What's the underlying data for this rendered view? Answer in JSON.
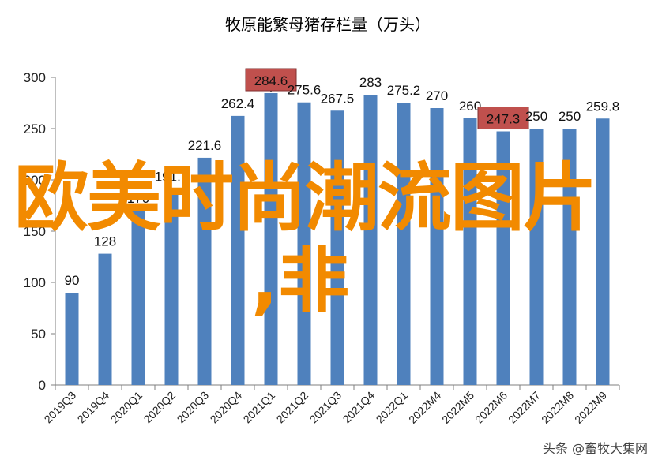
{
  "chart_data": {
    "type": "bar",
    "title": "牧原能繁母猪存栏量（万头）",
    "categories": [
      "2019Q3",
      "2019Q4",
      "2020Q1",
      "2020Q2",
      "2020Q3",
      "2020Q4",
      "2021Q1",
      "2021Q2",
      "2021Q3",
      "2021Q4",
      "2022Q1",
      "2022M4",
      "2022M5",
      "2022M6",
      "2022M7",
      "2022M8",
      "2022M9"
    ],
    "values": [
      90,
      128,
      170,
      191.1,
      221.6,
      262.4,
      284.6,
      275.6,
      267.5,
      283,
      275.2,
      270,
      260,
      247.3,
      250,
      250,
      259.8
    ],
    "data_labels": [
      "90",
      "128",
      "170",
      "191.1",
      "221.6",
      "262.4",
      "284.6",
      "275.6",
      "267.5",
      "283",
      "275.2",
      "270",
      "260",
      "247.3",
      "250",
      "250",
      "259.8"
    ],
    "highlighted": [
      "2021Q1",
      "2022M6"
    ],
    "ylim": [
      0,
      300
    ],
    "yticks": [
      0,
      50,
      100,
      150,
      200,
      250,
      300
    ],
    "ytick_labels": [
      "0",
      "50",
      "100",
      "150",
      "200",
      "250",
      "300"
    ],
    "xlabel": "",
    "ylabel": "",
    "grid": false,
    "colors": {
      "bar": "#4f81bd",
      "highlight_fill": "#c0504d",
      "axis": "#7f7f7f"
    }
  },
  "overlay": {
    "line1": "欧美时尚潮流图片",
    "line2": ",非",
    "color": "#f28a00"
  },
  "watermark": "头条 @畜牧大集网"
}
